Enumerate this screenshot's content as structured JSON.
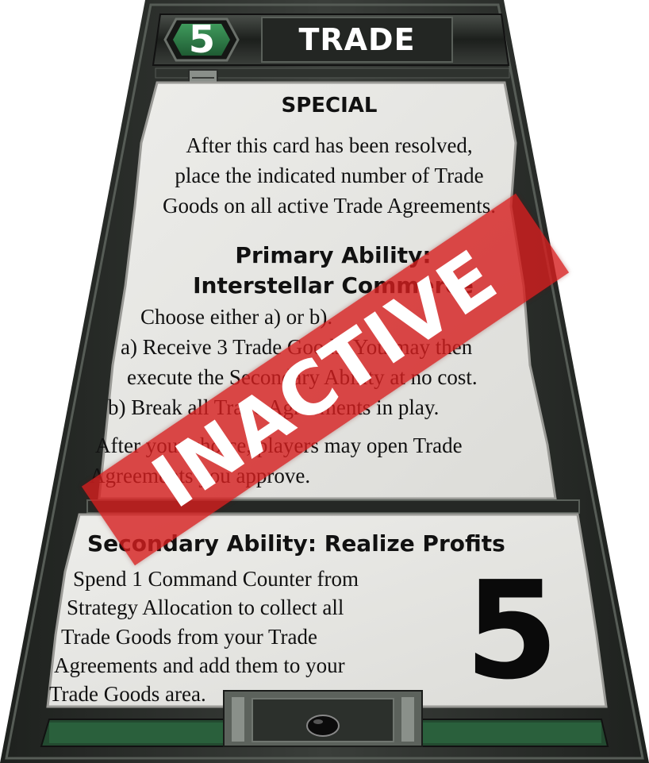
{
  "card": {
    "strategy_number": "5",
    "title": "TRADE",
    "special": {
      "heading": "SPECIAL",
      "lines": [
        "After this card has been resolved,",
        "place the indicated number of Trade",
        "Goods on all active Trade Agreements."
      ]
    },
    "primary": {
      "heading_line1": "Primary Ability:",
      "heading_line2": "Interstellar Commerce",
      "lines": [
        "Choose either a) or b).",
        "a) Receive 3 Trade Goods. You may then",
        "execute the Secondary Ability at no cost.",
        "b) Break all Trade Agreements in play.",
        "After your choice, players may open Trade",
        "Agreements you approve."
      ]
    },
    "secondary": {
      "heading": "Secondary Ability: Realize Profits",
      "lines": [
        "Spend 1 Command Counter from",
        "Strategy Allocation to collect all",
        "Trade Goods from your Trade",
        "Agreements and add them to your",
        "Trade Goods area."
      ]
    },
    "trade_goods_value": "5",
    "status_banner": "INACTIVE"
  },
  "colors": {
    "frame": "#2b2e2b",
    "panel": "#e6e6e3",
    "accent_green": "#2e7a46",
    "banner_red": "#d61e1e"
  },
  "icons": {
    "number_badge": "hexagon-badge-icon",
    "card_clip": "metal-clip-icon",
    "bottom_gem": "black-gem-icon"
  }
}
